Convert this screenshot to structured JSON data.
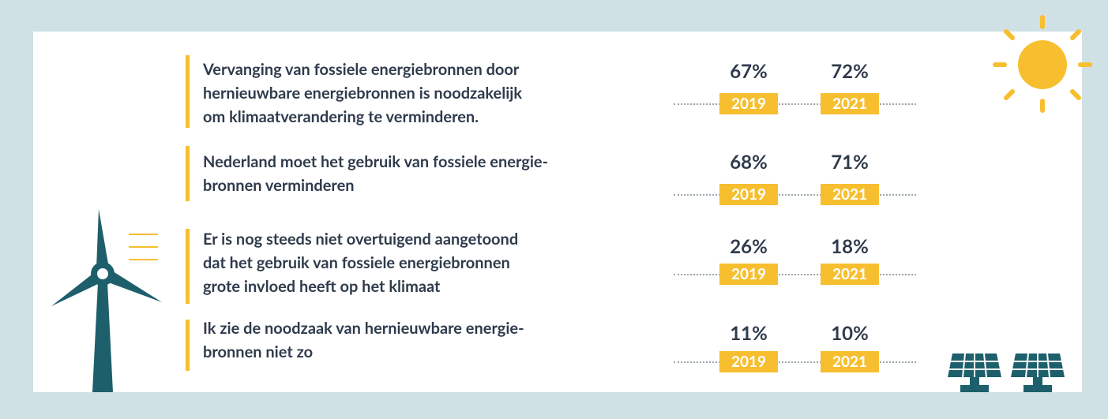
{
  "rows": [
    {
      "lines": [
        "Vervanging van fossiele energiebronnen door",
        "hernieuwbare energiebronnen is noodzakelijk",
        "om klimaatverandering te verminderen."
      ],
      "results": [
        {
          "value": "67%",
          "year": "2019"
        },
        {
          "value": "72%",
          "year": "2021"
        }
      ]
    },
    {
      "lines": [
        "Nederland moet het gebruik van fossiele energie-",
        "bronnen verminderen"
      ],
      "results": [
        {
          "value": "68%",
          "year": "2019"
        },
        {
          "value": "71%",
          "year": "2021"
        }
      ]
    },
    {
      "lines": [
        "Er is nog steeds niet overtuigend aangetoond",
        "dat het gebruik van fossiele energiebronnen",
        "grote invloed heeft op het klimaat"
      ],
      "results": [
        {
          "value": "26%",
          "year": "2019"
        },
        {
          "value": "18%",
          "year": "2021"
        }
      ]
    },
    {
      "lines": [
        "Ik zie de noodzaak van hernieuwbare energie-",
        "bronnen niet zo"
      ],
      "results": [
        {
          "value": "11%",
          "year": "2019"
        },
        {
          "value": "10%",
          "year": "2021"
        }
      ]
    }
  ]
}
